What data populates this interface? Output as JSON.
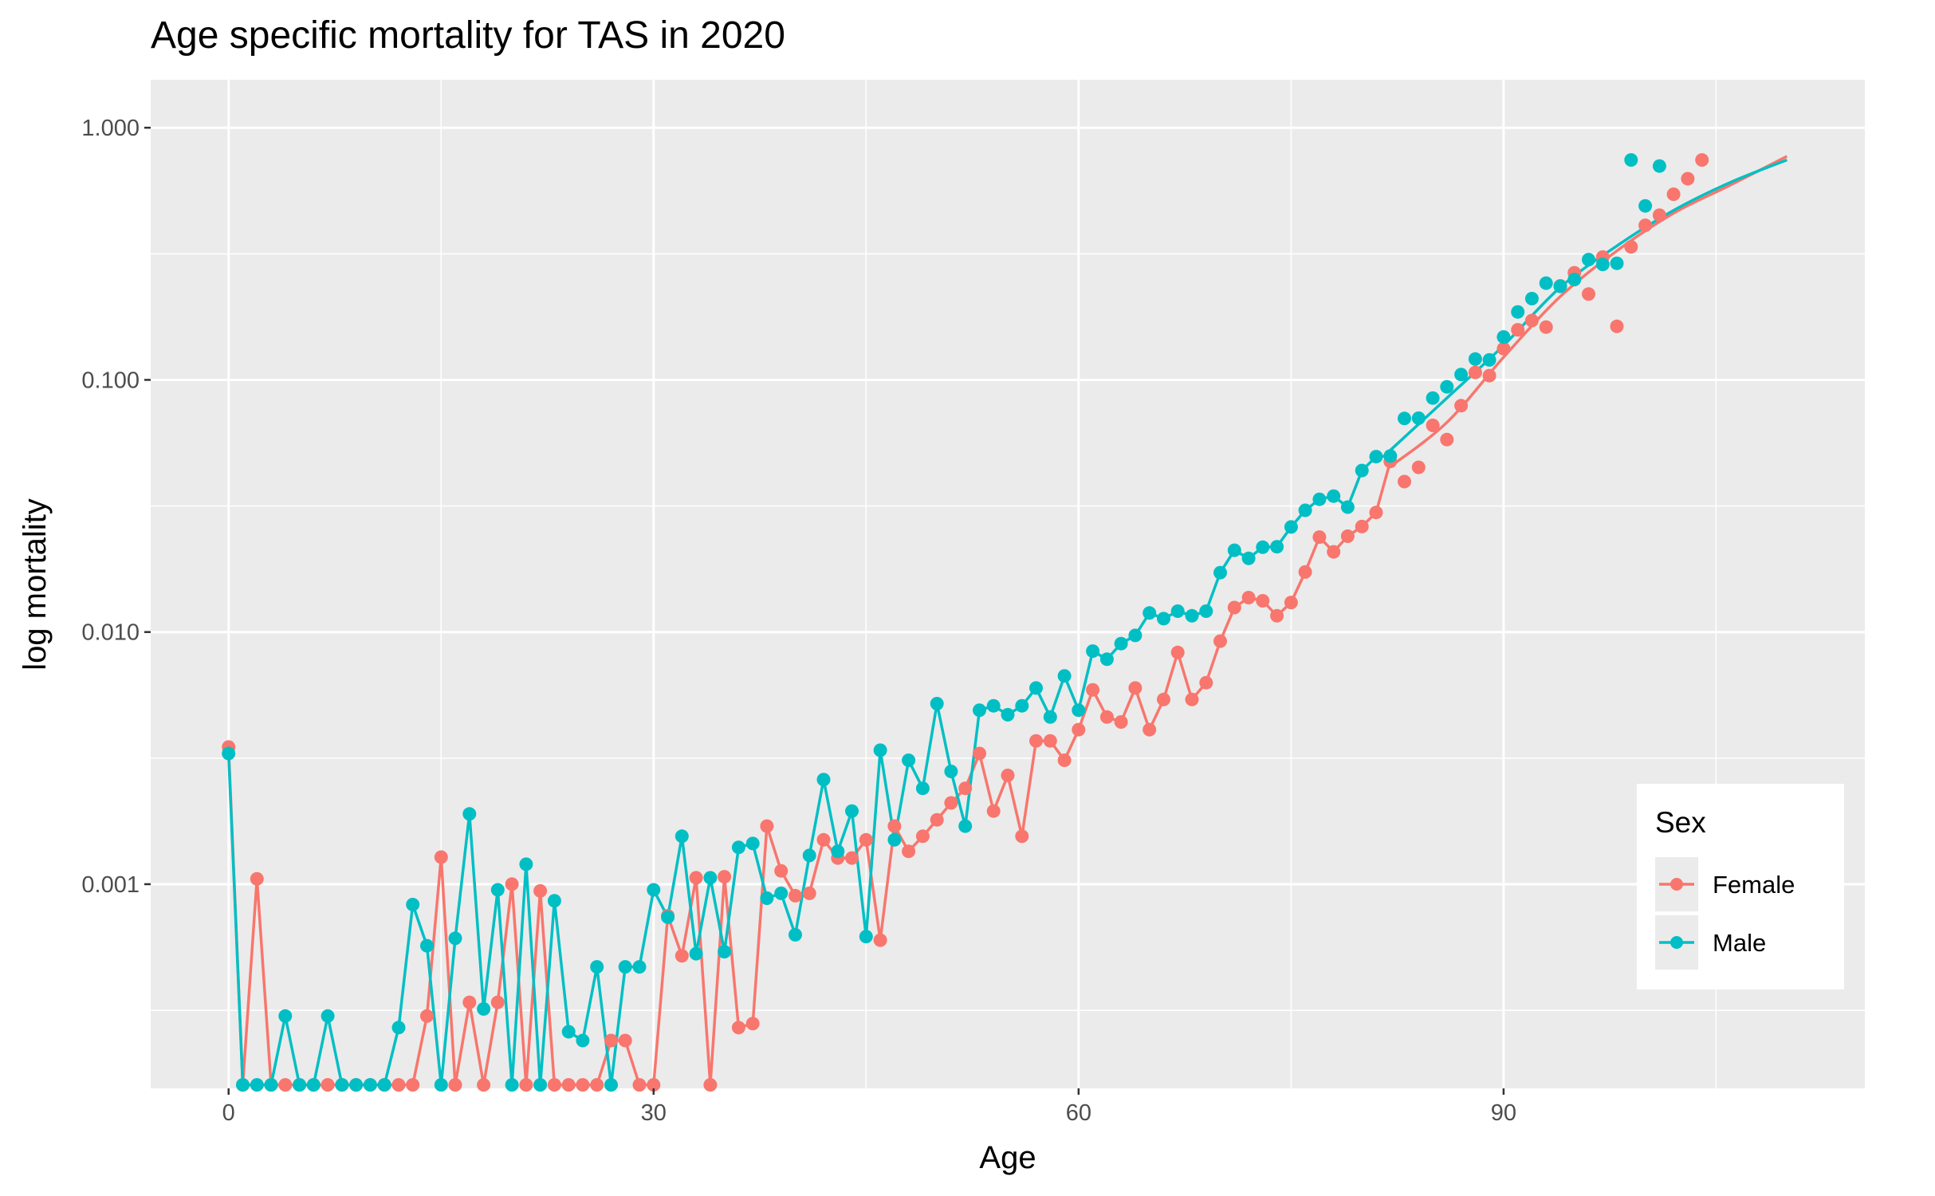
{
  "chart_data": {
    "type": "line",
    "title": "Age specific mortality for TAS in 2020",
    "xlabel": "Age",
    "ylabel": "log mortality",
    "y_scale": "log",
    "xlim": [
      -5.5,
      115.5
    ],
    "ylim": [
      0.000155,
      1.55
    ],
    "x_ticks": [
      0,
      30,
      60,
      90
    ],
    "x_tick_labels": [
      "0",
      "30",
      "60",
      "90"
    ],
    "y_ticks": [
      0.001,
      0.01,
      0.1,
      1
    ],
    "y_tick_labels": [
      "0.001",
      "0.010",
      "0.100",
      "1.000"
    ],
    "grid": true,
    "background": "#ebebeb",
    "legend": {
      "title": "Sex",
      "position": "right-inside-bottom",
      "entries": [
        "Female",
        "Male"
      ]
    },
    "series": [
      {
        "name": "Female",
        "color": "#F8766D",
        "points": [
          [
            0,
            0.0035
          ],
          [
            1,
            0.00016
          ],
          [
            2,
            0.00105
          ],
          [
            3,
            0.00016
          ],
          [
            4,
            0.00016
          ],
          [
            5,
            0.00016
          ],
          [
            6,
            0.00016
          ],
          [
            7,
            0.00016
          ],
          [
            8,
            0.00016
          ],
          [
            9,
            0.00016
          ],
          [
            10,
            0.00016
          ],
          [
            11,
            0.00016
          ],
          [
            12,
            0.00016
          ],
          [
            13,
            0.00016
          ],
          [
            14,
            0.0003
          ],
          [
            15,
            0.00128
          ],
          [
            16,
            0.00016
          ],
          [
            17,
            0.00034
          ],
          [
            18,
            0.00016
          ],
          [
            19,
            0.00034
          ],
          [
            20,
            0.001
          ],
          [
            21,
            0.00016
          ],
          [
            22,
            0.00094
          ],
          [
            23,
            0.00016
          ],
          [
            24,
            0.00016
          ],
          [
            25,
            0.00016
          ],
          [
            26,
            0.00016
          ],
          [
            27,
            0.00024
          ],
          [
            28,
            0.00024
          ],
          [
            29,
            0.00016
          ],
          [
            30,
            0.00016
          ],
          [
            31,
            0.00075
          ],
          [
            32,
            0.00052
          ],
          [
            33,
            0.00106
          ],
          [
            34,
            0.00016
          ],
          [
            35,
            0.00107
          ],
          [
            36,
            0.00027
          ],
          [
            37,
            0.00028
          ],
          [
            38,
            0.0017
          ],
          [
            39,
            0.00113
          ],
          [
            40,
            0.0009
          ],
          [
            41,
            0.00092
          ],
          [
            42,
            0.0015
          ],
          [
            43,
            0.00127
          ],
          [
            44,
            0.00127
          ],
          [
            45,
            0.0015
          ],
          [
            46,
            0.0006
          ],
          [
            47,
            0.0017
          ],
          [
            48,
            0.00135
          ],
          [
            49,
            0.00155
          ],
          [
            50,
            0.0018
          ],
          [
            51,
            0.0021
          ],
          [
            52,
            0.0024
          ],
          [
            53,
            0.0033
          ],
          [
            54,
            0.00195
          ],
          [
            55,
            0.0027
          ],
          [
            56,
            0.00155
          ],
          [
            57,
            0.0037
          ],
          [
            58,
            0.0037
          ],
          [
            59,
            0.0031
          ],
          [
            60,
            0.0041
          ],
          [
            61,
            0.0059
          ],
          [
            62,
            0.0046
          ],
          [
            63,
            0.0044
          ],
          [
            64,
            0.006
          ],
          [
            65,
            0.0041
          ],
          [
            66,
            0.0054
          ],
          [
            67,
            0.0083
          ],
          [
            68,
            0.0054
          ],
          [
            69,
            0.0063
          ],
          [
            70,
            0.0092
          ],
          [
            71,
            0.0125
          ],
          [
            72,
            0.0137
          ],
          [
            73,
            0.0133
          ],
          [
            74,
            0.0116
          ],
          [
            75,
            0.0131
          ],
          [
            76,
            0.0173
          ],
          [
            77,
            0.0238
          ],
          [
            78,
            0.0208
          ],
          [
            79,
            0.024
          ],
          [
            80,
            0.0262
          ],
          [
            81,
            0.0298
          ],
          [
            82,
            0.0475
          ],
          [
            83,
            0.0395
          ],
          [
            84,
            0.045
          ],
          [
            85,
            0.066
          ],
          [
            86,
            0.058
          ],
          [
            87,
            0.079
          ],
          [
            88,
            0.107
          ],
          [
            89,
            0.104
          ],
          [
            90,
            0.133
          ],
          [
            91,
            0.158
          ],
          [
            92,
            0.172
          ],
          [
            93,
            0.162
          ],
          [
            94,
            0.236
          ],
          [
            95,
            0.266
          ],
          [
            96,
            0.219
          ],
          [
            97,
            0.307
          ],
          [
            98,
            0.163
          ],
          [
            99,
            0.337
          ],
          [
            100,
            0.41
          ],
          [
            101,
            0.45
          ],
          [
            102,
            0.545
          ],
          [
            103,
            0.628
          ],
          [
            104,
            0.745
          ]
        ],
        "fitted": [
          [
            82,
            0.0453
          ],
          [
            86,
            0.0678
          ],
          [
            90,
            0.123
          ],
          [
            94,
            0.214
          ],
          [
            98,
            0.325
          ],
          [
            102,
            0.458
          ],
          [
            106,
            0.592
          ],
          [
            110,
            0.77
          ]
        ]
      },
      {
        "name": "Male",
        "color": "#00BFC4",
        "points": [
          [
            0,
            0.0033
          ],
          [
            1,
            0.00016
          ],
          [
            2,
            0.00016
          ],
          [
            3,
            0.00016
          ],
          [
            4,
            0.0003
          ],
          [
            5,
            0.00016
          ],
          [
            6,
            0.00016
          ],
          [
            7,
            0.0003
          ],
          [
            8,
            0.00016
          ],
          [
            9,
            0.00016
          ],
          [
            10,
            0.00016
          ],
          [
            11,
            0.00016
          ],
          [
            12,
            0.00027
          ],
          [
            13,
            0.00083
          ],
          [
            14,
            0.00057
          ],
          [
            15,
            0.00016
          ],
          [
            16,
            0.00061
          ],
          [
            17,
            0.0019
          ],
          [
            18,
            0.00032
          ],
          [
            19,
            0.00095
          ],
          [
            20,
            0.00016
          ],
          [
            21,
            0.0012
          ],
          [
            22,
            0.00016
          ],
          [
            23,
            0.00086
          ],
          [
            24,
            0.00026
          ],
          [
            25,
            0.00024
          ],
          [
            26,
            0.00047
          ],
          [
            27,
            0.00016
          ],
          [
            28,
            0.00047
          ],
          [
            29,
            0.00047
          ],
          [
            30,
            0.00095
          ],
          [
            31,
            0.00074
          ],
          [
            32,
            0.00155
          ],
          [
            33,
            0.00053
          ],
          [
            34,
            0.00106
          ],
          [
            35,
            0.00054
          ],
          [
            36,
            0.0014
          ],
          [
            37,
            0.00145
          ],
          [
            38,
            0.00088
          ],
          [
            39,
            0.00092
          ],
          [
            40,
            0.00063
          ],
          [
            41,
            0.0013
          ],
          [
            42,
            0.0026
          ],
          [
            43,
            0.00135
          ],
          [
            44,
            0.00195
          ],
          [
            45,
            0.00062
          ],
          [
            46,
            0.0034
          ],
          [
            47,
            0.0015
          ],
          [
            48,
            0.0031
          ],
          [
            49,
            0.0024
          ],
          [
            50,
            0.0052
          ],
          [
            51,
            0.0028
          ],
          [
            52,
            0.0017
          ],
          [
            53,
            0.0049
          ],
          [
            54,
            0.0051
          ],
          [
            55,
            0.0047
          ],
          [
            56,
            0.0051
          ],
          [
            57,
            0.006
          ],
          [
            58,
            0.0046
          ],
          [
            59,
            0.0067
          ],
          [
            60,
            0.0049
          ],
          [
            61,
            0.0084
          ],
          [
            62,
            0.0078
          ],
          [
            63,
            0.009
          ],
          [
            64,
            0.0097
          ],
          [
            65,
            0.0119
          ],
          [
            66,
            0.0113
          ],
          [
            67,
            0.0121
          ],
          [
            68,
            0.0116
          ],
          [
            69,
            0.0121
          ],
          [
            70,
            0.0172
          ],
          [
            71,
            0.0211
          ],
          [
            72,
            0.0196
          ],
          [
            73,
            0.0217
          ],
          [
            74,
            0.0218
          ],
          [
            75,
            0.0261
          ],
          [
            76,
            0.0304
          ],
          [
            77,
            0.0336
          ],
          [
            78,
            0.0346
          ],
          [
            79,
            0.0313
          ],
          [
            80,
            0.0437
          ],
          [
            81,
            0.0496
          ],
          [
            82,
            0.0499
          ],
          [
            83,
            0.0703
          ],
          [
            84,
            0.0705
          ],
          [
            85,
            0.0847
          ],
          [
            86,
            0.0939
          ],
          [
            87,
            0.105
          ],
          [
            88,
            0.121
          ],
          [
            89,
            0.12
          ],
          [
            90,
            0.148
          ],
          [
            91,
            0.186
          ],
          [
            92,
            0.21
          ],
          [
            93,
            0.242
          ],
          [
            94,
            0.235
          ],
          [
            95,
            0.25
          ],
          [
            96,
            0.3
          ],
          [
            97,
            0.287
          ],
          [
            98,
            0.29
          ],
          [
            99,
            0.745
          ],
          [
            100,
            0.49
          ],
          [
            101,
            0.705
          ]
        ],
        "fitted": [
          [
            82,
            0.0526
          ],
          [
            86,
            0.0847
          ],
          [
            90,
            0.137
          ],
          [
            94,
            0.233
          ],
          [
            98,
            0.34
          ],
          [
            102,
            0.47
          ],
          [
            106,
            0.607
          ],
          [
            110,
            0.745
          ]
        ]
      }
    ]
  }
}
